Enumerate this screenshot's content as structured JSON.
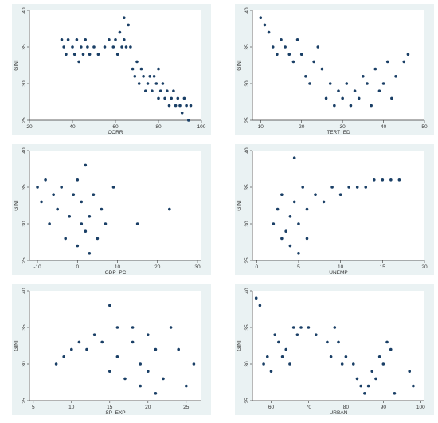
{
  "chart_data": [
    {
      "type": "scatter",
      "xlabel": "CORR",
      "ylabel": "GINI",
      "xlim": [
        20,
        100
      ],
      "ylim": [
        25,
        40
      ],
      "xticks": [
        "20",
        "40",
        "60",
        "80",
        "100"
      ],
      "yticks": [
        "25",
        "30",
        "35",
        "40"
      ],
      "points": [
        [
          35,
          36
        ],
        [
          36,
          35
        ],
        [
          37,
          34
        ],
        [
          38,
          36
        ],
        [
          40,
          35
        ],
        [
          41,
          34
        ],
        [
          42,
          36
        ],
        [
          43,
          33
        ],
        [
          44,
          35
        ],
        [
          45,
          34
        ],
        [
          46,
          36
        ],
        [
          47,
          35
        ],
        [
          48,
          34
        ],
        [
          50,
          35
        ],
        [
          52,
          34
        ],
        [
          55,
          35
        ],
        [
          57,
          36
        ],
        [
          59,
          35
        ],
        [
          60,
          36
        ],
        [
          61,
          34
        ],
        [
          62,
          37
        ],
        [
          63,
          35
        ],
        [
          64,
          36
        ],
        [
          64,
          39
        ],
        [
          65,
          35
        ],
        [
          66,
          38
        ],
        [
          67,
          35
        ],
        [
          68,
          32
        ],
        [
          69,
          31
        ],
        [
          70,
          33
        ],
        [
          71,
          30
        ],
        [
          72,
          32
        ],
        [
          73,
          31
        ],
        [
          74,
          29
        ],
        [
          75,
          30
        ],
        [
          76,
          31
        ],
        [
          77,
          29
        ],
        [
          78,
          31
        ],
        [
          79,
          30
        ],
        [
          80,
          28
        ],
        [
          80,
          32
        ],
        [
          81,
          29
        ],
        [
          82,
          30
        ],
        [
          83,
          28
        ],
        [
          84,
          29
        ],
        [
          85,
          27
        ],
        [
          86,
          28
        ],
        [
          87,
          29
        ],
        [
          88,
          27
        ],
        [
          89,
          28
        ],
        [
          90,
          27
        ],
        [
          91,
          26
        ],
        [
          92,
          28
        ],
        [
          93,
          27
        ],
        [
          94,
          25
        ],
        [
          95,
          27
        ]
      ],
      "color": "#1a3f66"
    },
    {
      "type": "scatter",
      "xlabel": "TERT_ED",
      "ylabel": "GINI",
      "xlim": [
        8,
        50
      ],
      "ylim": [
        25,
        40
      ],
      "xticks": [
        "10",
        "20",
        "30",
        "40",
        "50"
      ],
      "yticks": [
        "25",
        "30",
        "35",
        "40"
      ],
      "points": [
        [
          10,
          39
        ],
        [
          11,
          38
        ],
        [
          12,
          37
        ],
        [
          13,
          35
        ],
        [
          14,
          34
        ],
        [
          15,
          36
        ],
        [
          16,
          35
        ],
        [
          17,
          34
        ],
        [
          18,
          33
        ],
        [
          19,
          36
        ],
        [
          20,
          34
        ],
        [
          21,
          31
        ],
        [
          22,
          30
        ],
        [
          23,
          33
        ],
        [
          24,
          35
        ],
        [
          25,
          32
        ],
        [
          26,
          28
        ],
        [
          27,
          30
        ],
        [
          28,
          27
        ],
        [
          29,
          29
        ],
        [
          30,
          28
        ],
        [
          31,
          30
        ],
        [
          32,
          27
        ],
        [
          33,
          29
        ],
        [
          34,
          28
        ],
        [
          35,
          31
        ],
        [
          36,
          30
        ],
        [
          37,
          27
        ],
        [
          38,
          32
        ],
        [
          39,
          29
        ],
        [
          40,
          30
        ],
        [
          41,
          33
        ],
        [
          42,
          28
        ],
        [
          43,
          31
        ],
        [
          45,
          33
        ],
        [
          46,
          34
        ]
      ],
      "color": "#1a3f66"
    },
    {
      "type": "scatter",
      "xlabel": "GDP_PC",
      "ylabel": "GINI",
      "xlim": [
        -12,
        31
      ],
      "ylim": [
        25,
        40
      ],
      "xticks": [
        "-10",
        "0",
        "10",
        "20",
        "30"
      ],
      "yticks": [
        "25",
        "30",
        "35",
        "40"
      ],
      "points": [
        [
          -10,
          35
        ],
        [
          -9,
          33
        ],
        [
          -8,
          36
        ],
        [
          -7,
          30
        ],
        [
          -6,
          34
        ],
        [
          -5,
          32
        ],
        [
          -4,
          35
        ],
        [
          -3,
          28
        ],
        [
          -2,
          31
        ],
        [
          -1,
          34
        ],
        [
          0,
          27
        ],
        [
          0,
          36
        ],
        [
          1,
          30
        ],
        [
          1,
          33
        ],
        [
          2,
          29
        ],
        [
          2,
          38
        ],
        [
          3,
          26
        ],
        [
          3,
          31
        ],
        [
          4,
          34
        ],
        [
          5,
          28
        ],
        [
          6,
          32
        ],
        [
          7,
          30
        ],
        [
          9,
          35
        ],
        [
          15,
          30
        ],
        [
          23,
          32
        ]
      ],
      "color": "#1a3f66"
    },
    {
      "type": "scatter",
      "xlabel": "UNEMP",
      "ylabel": "GINI",
      "xlim": [
        -0.5,
        20
      ],
      "ylim": [
        25,
        40
      ],
      "xticks": [
        "0",
        "5",
        "10",
        "15",
        "20"
      ],
      "yticks": [
        "25",
        "30",
        "35",
        "40"
      ],
      "points": [
        [
          2,
          30
        ],
        [
          2.5,
          32
        ],
        [
          3,
          28
        ],
        [
          3,
          34
        ],
        [
          3.5,
          29
        ],
        [
          4,
          31
        ],
        [
          4,
          27
        ],
        [
          4.5,
          33
        ],
        [
          4.5,
          39
        ],
        [
          5,
          26
        ],
        [
          5,
          30
        ],
        [
          5.5,
          35
        ],
        [
          6,
          28
        ],
        [
          6,
          32
        ],
        [
          7,
          34
        ],
        [
          8,
          33
        ],
        [
          9,
          35
        ],
        [
          10,
          34
        ],
        [
          11,
          35
        ],
        [
          12,
          35
        ],
        [
          13,
          35
        ],
        [
          14,
          36
        ],
        [
          15,
          36
        ],
        [
          16,
          36
        ],
        [
          17,
          36
        ]
      ],
      "color": "#1a3f66"
    },
    {
      "type": "scatter",
      "xlabel": "SP_EXP",
      "ylabel": "GINI",
      "xlim": [
        4.5,
        27
      ],
      "ylim": [
        25,
        40
      ],
      "xticks": [
        "5",
        "10",
        "15",
        "20",
        "25"
      ],
      "yticks": [
        "25",
        "30",
        "35",
        "40"
      ],
      "points": [
        [
          8,
          30
        ],
        [
          9,
          31
        ],
        [
          10,
          32
        ],
        [
          11,
          33
        ],
        [
          12,
          32
        ],
        [
          13,
          34
        ],
        [
          14,
          33
        ],
        [
          15,
          38
        ],
        [
          15,
          29
        ],
        [
          16,
          35
        ],
        [
          16,
          31
        ],
        [
          17,
          28
        ],
        [
          18,
          35
        ],
        [
          18,
          33
        ],
        [
          19,
          30
        ],
        [
          19,
          27
        ],
        [
          20,
          34
        ],
        [
          20,
          29
        ],
        [
          21,
          32
        ],
        [
          21,
          26
        ],
        [
          22,
          28
        ],
        [
          23,
          35
        ],
        [
          24,
          32
        ],
        [
          25,
          27
        ],
        [
          26,
          30
        ]
      ],
      "color": "#1a3f66"
    },
    {
      "type": "scatter",
      "xlabel": "URBAN",
      "ylabel": "GINI",
      "xlim": [
        55,
        101
      ],
      "ylim": [
        25,
        40
      ],
      "xticks": [
        "60",
        "70",
        "80",
        "90",
        "100"
      ],
      "yticks": [
        "25",
        "30",
        "35",
        "40"
      ],
      "points": [
        [
          56,
          39
        ],
        [
          57,
          38
        ],
        [
          58,
          30
        ],
        [
          59,
          31
        ],
        [
          60,
          29
        ],
        [
          61,
          34
        ],
        [
          62,
          33
        ],
        [
          63,
          31
        ],
        [
          64,
          32
        ],
        [
          65,
          30
        ],
        [
          66,
          35
        ],
        [
          67,
          34
        ],
        [
          68,
          35
        ],
        [
          70,
          35
        ],
        [
          72,
          34
        ],
        [
          75,
          33
        ],
        [
          76,
          31
        ],
        [
          77,
          35
        ],
        [
          78,
          33
        ],
        [
          79,
          30
        ],
        [
          80,
          31
        ],
        [
          82,
          30
        ],
        [
          83,
          28
        ],
        [
          84,
          27
        ],
        [
          85,
          26
        ],
        [
          86,
          27
        ],
        [
          87,
          29
        ],
        [
          88,
          28
        ],
        [
          89,
          31
        ],
        [
          90,
          30
        ],
        [
          91,
          33
        ],
        [
          92,
          32
        ],
        [
          93,
          26
        ],
        [
          97,
          29
        ],
        [
          98,
          27
        ]
      ],
      "color": "#1a3f66"
    }
  ]
}
